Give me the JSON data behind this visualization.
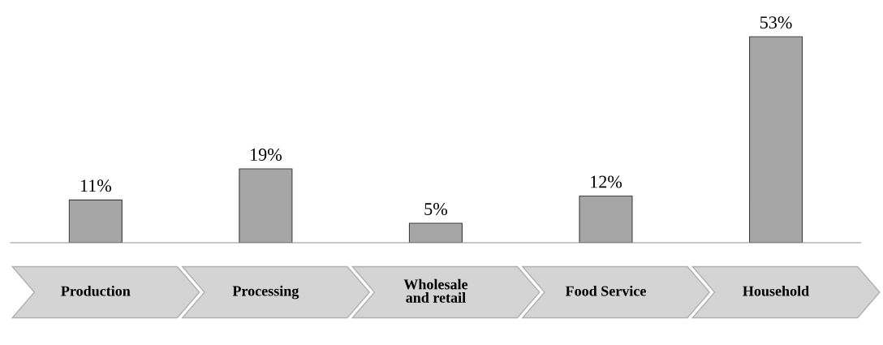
{
  "chart_data": {
    "type": "bar",
    "categories": [
      "Production",
      "Processing",
      "Wholesale\nand retail",
      "Food Service",
      "Household"
    ],
    "values": [
      11,
      19,
      5,
      12,
      53
    ],
    "value_labels": [
      "11%",
      "19%",
      "5%",
      "12%",
      "53%"
    ],
    "color": "#a6a6a6",
    "grid": false,
    "legend": false
  }
}
